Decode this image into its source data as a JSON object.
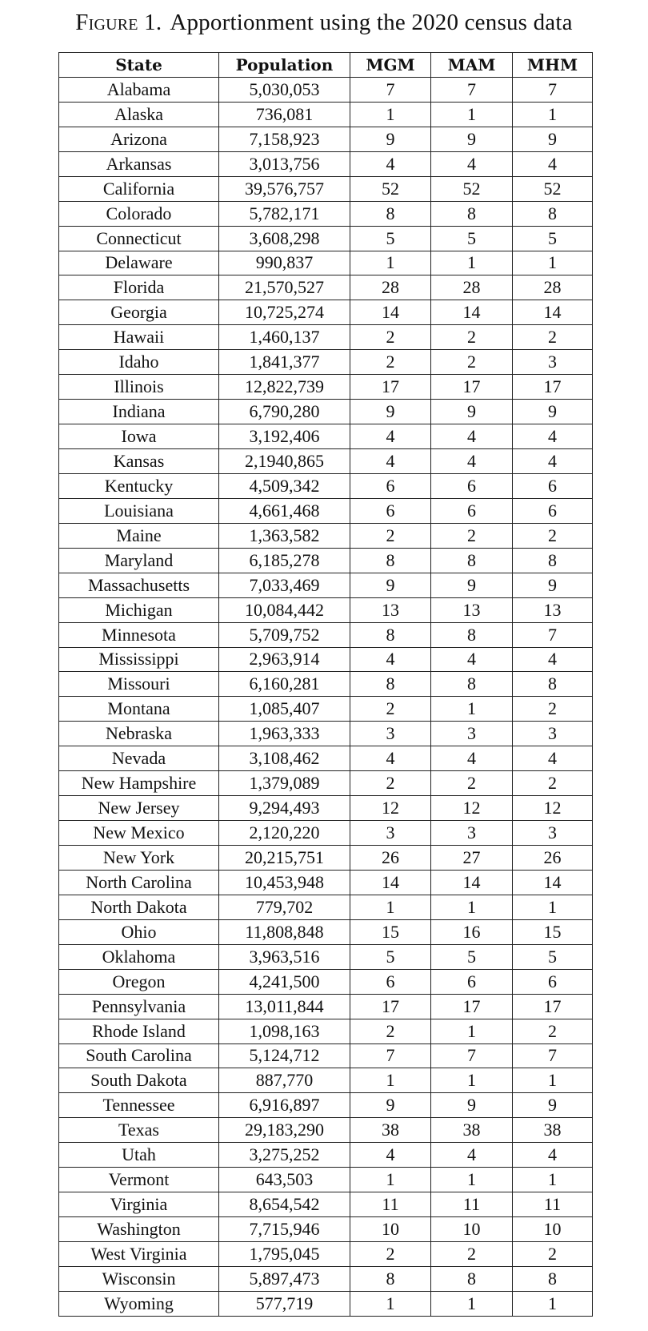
{
  "caption": {
    "label": "Figure 1.",
    "text": "Apportionment using the 2020 census data"
  },
  "table": {
    "headers": [
      "State",
      "Population",
      "MGM",
      "MAM",
      "MHM"
    ],
    "rows": [
      [
        "Alabama",
        "5,030,053",
        "7",
        "7",
        "7"
      ],
      [
        "Alaska",
        "736,081",
        "1",
        "1",
        "1"
      ],
      [
        "Arizona",
        "7,158,923",
        "9",
        "9",
        "9"
      ],
      [
        "Arkansas",
        "3,013,756",
        "4",
        "4",
        "4"
      ],
      [
        "California",
        "39,576,757",
        "52",
        "52",
        "52"
      ],
      [
        "Colorado",
        "5,782,171",
        "8",
        "8",
        "8"
      ],
      [
        "Connecticut",
        "3,608,298",
        "5",
        "5",
        "5"
      ],
      [
        "Delaware",
        "990,837",
        "1",
        "1",
        "1"
      ],
      [
        "Florida",
        "21,570,527",
        "28",
        "28",
        "28"
      ],
      [
        "Georgia",
        "10,725,274",
        "14",
        "14",
        "14"
      ],
      [
        "Hawaii",
        "1,460,137",
        "2",
        "2",
        "2"
      ],
      [
        "Idaho",
        "1,841,377",
        "2",
        "2",
        "3"
      ],
      [
        "Illinois",
        "12,822,739",
        "17",
        "17",
        "17"
      ],
      [
        "Indiana",
        "6,790,280",
        "9",
        "9",
        "9"
      ],
      [
        "Iowa",
        "3,192,406",
        "4",
        "4",
        "4"
      ],
      [
        "Kansas",
        "2,1940,865",
        "4",
        "4",
        "4"
      ],
      [
        "Kentucky",
        "4,509,342",
        "6",
        "6",
        "6"
      ],
      [
        "Louisiana",
        "4,661,468",
        "6",
        "6",
        "6"
      ],
      [
        "Maine",
        "1,363,582",
        "2",
        "2",
        "2"
      ],
      [
        "Maryland",
        "6,185,278",
        "8",
        "8",
        "8"
      ],
      [
        "Massachusetts",
        "7,033,469",
        "9",
        "9",
        "9"
      ],
      [
        "Michigan",
        "10,084,442",
        "13",
        "13",
        "13"
      ],
      [
        "Minnesota",
        "5,709,752",
        "8",
        "8",
        "7"
      ],
      [
        "Mississippi",
        "2,963,914",
        "4",
        "4",
        "4"
      ],
      [
        "Missouri",
        "6,160,281",
        "8",
        "8",
        "8"
      ],
      [
        "Montana",
        "1,085,407",
        "2",
        "1",
        "2"
      ],
      [
        "Nebraska",
        "1,963,333",
        "3",
        "3",
        "3"
      ],
      [
        "Nevada",
        "3,108,462",
        "4",
        "4",
        "4"
      ],
      [
        "New Hampshire",
        "1,379,089",
        "2",
        "2",
        "2"
      ],
      [
        "New Jersey",
        "9,294,493",
        "12",
        "12",
        "12"
      ],
      [
        "New Mexico",
        "2,120,220",
        "3",
        "3",
        "3"
      ],
      [
        "New York",
        "20,215,751",
        "26",
        "27",
        "26"
      ],
      [
        "North Carolina",
        "10,453,948",
        "14",
        "14",
        "14"
      ],
      [
        "North Dakota",
        "779,702",
        "1",
        "1",
        "1"
      ],
      [
        "Ohio",
        "11,808,848",
        "15",
        "16",
        "15"
      ],
      [
        "Oklahoma",
        "3,963,516",
        "5",
        "5",
        "5"
      ],
      [
        "Oregon",
        "4,241,500",
        "6",
        "6",
        "6"
      ],
      [
        "Pennsylvania",
        "13,011,844",
        "17",
        "17",
        "17"
      ],
      [
        "Rhode Island",
        "1,098,163",
        "2",
        "1",
        "2"
      ],
      [
        "South Carolina",
        "5,124,712",
        "7",
        "7",
        "7"
      ],
      [
        "South Dakota",
        "887,770",
        "1",
        "1",
        "1"
      ],
      [
        "Tennessee",
        "6,916,897",
        "9",
        "9",
        "9"
      ],
      [
        "Texas",
        "29,183,290",
        "38",
        "38",
        "38"
      ],
      [
        "Utah",
        "3,275,252",
        "4",
        "4",
        "4"
      ],
      [
        "Vermont",
        "643,503",
        "1",
        "1",
        "1"
      ],
      [
        "Virginia",
        "8,654,542",
        "11",
        "11",
        "11"
      ],
      [
        "Washington",
        "7,715,946",
        "10",
        "10",
        "10"
      ],
      [
        "West Virginia",
        "1,795,045",
        "2",
        "2",
        "2"
      ],
      [
        "Wisconsin",
        "5,897,473",
        "8",
        "8",
        "8"
      ],
      [
        "Wyoming",
        "577,719",
        "1",
        "1",
        "1"
      ]
    ]
  }
}
